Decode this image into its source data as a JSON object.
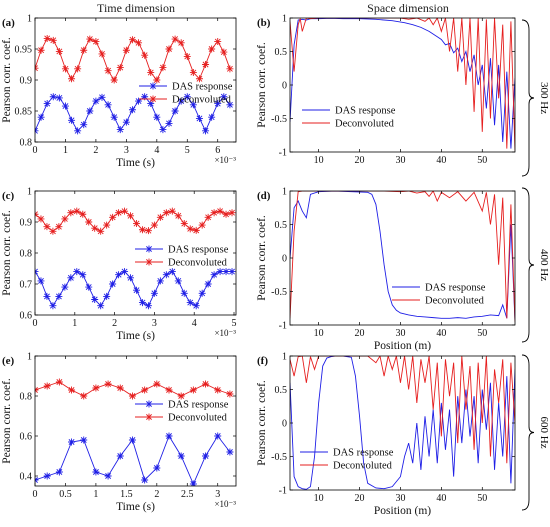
{
  "column_titles": [
    "Time dimension",
    "Space dimension"
  ],
  "frequency_labels": [
    "300 Hz",
    "400 Hz",
    "600 Hz"
  ],
  "colors": {
    "das": "#1f1fe6",
    "deconv": "#e61f1f",
    "axis": "#000000"
  },
  "chart_data": [
    {
      "id": "a",
      "panel_label": "(a)",
      "type": "line",
      "xlabel": "Time (s)",
      "ylabel": "Pearson corr. coef.",
      "x_exponent": "×10⁻³",
      "xlim": [
        0,
        6.6
      ],
      "ylim": [
        0.8,
        1
      ],
      "xticks": [
        0,
        1,
        2,
        3,
        4,
        5,
        6
      ],
      "yticks": [
        0.8,
        0.85,
        0.9,
        0.95,
        1
      ],
      "ytick_labels": [
        "0.8",
        "0.85",
        "0.9",
        "0.95",
        "1"
      ],
      "legend": {
        "loc": "center-right"
      },
      "markers": true,
      "series": [
        {
          "name": "DAS response",
          "color": "#1f1fe6",
          "x": [
            0,
            0.2,
            0.4,
            0.6,
            0.8,
            1.0,
            1.2,
            1.4,
            1.6,
            1.8,
            2.0,
            2.2,
            2.4,
            2.6,
            2.8,
            3.0,
            3.2,
            3.4,
            3.6,
            3.8,
            4.0,
            4.2,
            4.4,
            4.6,
            4.8,
            5.0,
            5.2,
            5.4,
            5.6,
            5.8,
            6.0,
            6.2,
            6.4
          ],
          "y": [
            0.818,
            0.84,
            0.862,
            0.873,
            0.871,
            0.858,
            0.835,
            0.818,
            0.828,
            0.85,
            0.866,
            0.872,
            0.86,
            0.84,
            0.82,
            0.832,
            0.852,
            0.866,
            0.873,
            0.862,
            0.84,
            0.82,
            0.83,
            0.85,
            0.866,
            0.873,
            0.86,
            0.838,
            0.818,
            0.84,
            0.862,
            0.873,
            0.86
          ]
        },
        {
          "name": "Deconvoluted",
          "color": "#e61f1f",
          "x": [
            0,
            0.2,
            0.4,
            0.6,
            0.8,
            1.0,
            1.2,
            1.4,
            1.6,
            1.8,
            2.0,
            2.2,
            2.4,
            2.6,
            2.8,
            3.0,
            3.2,
            3.4,
            3.6,
            3.8,
            4.0,
            4.2,
            4.4,
            4.6,
            4.8,
            5.0,
            5.2,
            5.4,
            5.6,
            5.8,
            6.0,
            6.2,
            6.4
          ],
          "y": [
            0.919,
            0.948,
            0.967,
            0.964,
            0.946,
            0.918,
            0.902,
            0.918,
            0.948,
            0.966,
            0.962,
            0.942,
            0.915,
            0.9,
            0.92,
            0.948,
            0.965,
            0.96,
            0.94,
            0.912,
            0.9,
            0.92,
            0.95,
            0.966,
            0.96,
            0.938,
            0.912,
            0.902,
            0.925,
            0.95,
            0.962,
            0.945,
            0.918
          ]
        }
      ]
    },
    {
      "id": "b",
      "panel_label": "(b)",
      "type": "line",
      "xlabel": "",
      "ylabel": "Pearson corr. coef.",
      "xlim": [
        3,
        58
      ],
      "ylim": [
        -1,
        1
      ],
      "xticks": [
        10,
        20,
        30,
        40,
        50
      ],
      "yticks": [
        -1,
        -0.5,
        0,
        0.5,
        1
      ],
      "ytick_labels": [
        "-1",
        "-0.5",
        "0",
        "0.5",
        "1"
      ],
      "legend": {
        "loc": "lower-left"
      },
      "markers": false,
      "series": [
        {
          "name": "DAS response",
          "color": "#1f1fe6",
          "x": [
            3,
            4,
            5,
            6,
            7,
            8,
            10,
            13,
            16,
            20,
            24,
            28,
            31,
            33,
            35,
            37,
            39,
            40,
            41,
            42,
            43,
            44,
            45,
            46,
            47,
            48,
            49,
            50,
            51,
            52,
            53,
            54,
            55,
            56,
            57,
            58
          ],
          "y": [
            -0.55,
            0.6,
            0.97,
            0.98,
            0.97,
            0.99,
            0.99,
            0.995,
            0.99,
            0.99,
            0.98,
            0.96,
            0.93,
            0.9,
            0.86,
            0.8,
            0.72,
            0.68,
            0.6,
            0.62,
            0.48,
            0.55,
            0.35,
            0.5,
            0.2,
            0.45,
            0.0,
            0.3,
            -0.35,
            0.4,
            -0.6,
            0.3,
            -0.85,
            0.2,
            -0.95,
            0.1
          ]
        },
        {
          "name": "Deconvoluted",
          "color": "#e61f1f",
          "x": [
            3,
            4,
            5,
            5.5,
            6,
            7,
            8,
            10,
            14,
            18,
            22,
            26,
            30,
            32,
            34,
            36,
            37,
            38,
            39,
            40,
            41,
            42,
            43,
            44,
            45,
            46,
            47,
            48,
            49,
            50,
            51,
            52,
            53,
            54,
            55,
            56,
            57,
            58
          ],
          "y": [
            0.95,
            0.2,
            0.9,
            0.99,
            0.8,
            1.0,
            0.99,
            1.0,
            1.0,
            1.0,
            1.0,
            1.0,
            1.0,
            0.98,
            1.0,
            0.95,
            1.0,
            0.9,
            1.0,
            0.8,
            1.0,
            0.5,
            1.0,
            0.2,
            1.0,
            0.0,
            1.0,
            -0.4,
            1.0,
            -0.7,
            0.98,
            -0.5,
            1.0,
            -0.2,
            0.9,
            -0.95,
            0.95,
            -0.98
          ]
        }
      ]
    },
    {
      "id": "c",
      "panel_label": "(c)",
      "type": "line",
      "xlabel": "Time (s)",
      "ylabel": "Pearson corr. coef.",
      "x_exponent": "×10⁻³",
      "xlim": [
        0,
        5.05
      ],
      "ylim": [
        0.6,
        1
      ],
      "xticks": [
        0,
        1,
        2,
        3,
        4,
        5
      ],
      "yticks": [
        0.6,
        0.7,
        0.8,
        0.9,
        1
      ],
      "ytick_labels": [
        "0.6",
        "0.7",
        "0.8",
        "0.9",
        "1"
      ],
      "legend": {
        "loc": "center-right"
      },
      "markers": true,
      "series": [
        {
          "name": "DAS response",
          "color": "#1f1fe6",
          "x": [
            0,
            0.15,
            0.3,
            0.45,
            0.6,
            0.75,
            0.9,
            1.05,
            1.2,
            1.35,
            1.5,
            1.65,
            1.8,
            1.95,
            2.1,
            2.25,
            2.4,
            2.55,
            2.7,
            2.85,
            3.0,
            3.15,
            3.3,
            3.45,
            3.6,
            3.75,
            3.9,
            4.05,
            4.2,
            4.35,
            4.5,
            4.65,
            4.8,
            4.95
          ],
          "y": [
            0.74,
            0.71,
            0.66,
            0.63,
            0.66,
            0.69,
            0.72,
            0.74,
            0.73,
            0.69,
            0.65,
            0.63,
            0.66,
            0.7,
            0.73,
            0.74,
            0.72,
            0.68,
            0.64,
            0.63,
            0.67,
            0.71,
            0.73,
            0.74,
            0.71,
            0.67,
            0.64,
            0.63,
            0.67,
            0.7,
            0.73,
            0.74,
            0.74,
            0.74
          ]
        },
        {
          "name": "Deconvoluted",
          "color": "#e61f1f",
          "x": [
            0,
            0.15,
            0.3,
            0.45,
            0.6,
            0.75,
            0.9,
            1.05,
            1.2,
            1.35,
            1.5,
            1.65,
            1.8,
            1.95,
            2.1,
            2.25,
            2.4,
            2.55,
            2.7,
            2.85,
            3.0,
            3.15,
            3.3,
            3.45,
            3.6,
            3.75,
            3.9,
            4.05,
            4.2,
            4.35,
            4.5,
            4.65,
            4.8,
            4.95
          ],
          "y": [
            0.925,
            0.91,
            0.885,
            0.87,
            0.885,
            0.91,
            0.93,
            0.935,
            0.925,
            0.9,
            0.88,
            0.87,
            0.89,
            0.915,
            0.93,
            0.935,
            0.92,
            0.895,
            0.875,
            0.872,
            0.89,
            0.915,
            0.93,
            0.935,
            0.92,
            0.895,
            0.878,
            0.873,
            0.89,
            0.915,
            0.93,
            0.935,
            0.925,
            0.93
          ]
        }
      ]
    },
    {
      "id": "d",
      "panel_label": "(d)",
      "type": "line",
      "xlabel": "Position (m)",
      "ylabel": "Pearson corr. coef.",
      "xlim": [
        3,
        58
      ],
      "ylim": [
        -1,
        1
      ],
      "xticks": [
        10,
        20,
        30,
        40,
        50
      ],
      "yticks": [
        -1,
        -0.5,
        0,
        0.5,
        1
      ],
      "ytick_labels": [
        "-1",
        "-0.5",
        "0",
        "0.5",
        "1"
      ],
      "legend": {
        "loc": "lower-right"
      },
      "markers": false,
      "series": [
        {
          "name": "DAS response",
          "color": "#1f1fe6",
          "x": [
            3,
            4,
            5,
            6,
            7,
            8,
            10,
            14,
            18,
            22,
            23,
            24,
            25,
            26,
            27,
            28,
            29,
            30,
            32,
            34,
            36,
            38,
            40,
            42,
            44,
            46,
            48,
            50,
            52,
            54,
            55,
            56,
            57,
            58
          ],
          "y": [
            0.0,
            0.75,
            0.85,
            0.7,
            0.6,
            0.95,
            0.99,
            1.0,
            0.99,
            0.98,
            0.95,
            0.8,
            0.4,
            -0.1,
            -0.5,
            -0.7,
            -0.78,
            -0.82,
            -0.85,
            -0.87,
            -0.88,
            -0.89,
            -0.9,
            -0.9,
            -0.89,
            -0.9,
            -0.88,
            -0.87,
            -0.85,
            -0.86,
            -0.7,
            -0.9,
            0.5,
            -0.95
          ]
        },
        {
          "name": "Deconvoluted",
          "color": "#e61f1f",
          "x": [
            3,
            4,
            5,
            6,
            8,
            10,
            14,
            18,
            22,
            26,
            30,
            32,
            34,
            36,
            37,
            38,
            39,
            40,
            42,
            44,
            46,
            48,
            50,
            51,
            52,
            53,
            54,
            55,
            56,
            57,
            58
          ],
          "y": [
            -0.9,
            0.4,
            0.99,
            1.0,
            1.0,
            1.0,
            1.0,
            1.0,
            1.0,
            1.0,
            0.99,
            1.0,
            0.97,
            0.99,
            0.92,
            1.0,
            0.85,
            0.98,
            0.9,
            0.99,
            0.85,
            0.98,
            0.7,
            0.98,
            0.5,
            0.95,
            -0.1,
            0.9,
            -0.9,
            0.8,
            -0.95
          ]
        }
      ]
    },
    {
      "id": "e",
      "panel_label": "(e)",
      "type": "line",
      "xlabel": "Time (s)",
      "ylabel": "Pearson corr. coef.",
      "x_exponent": "×10⁻³",
      "xlim": [
        0,
        3.3
      ],
      "ylim": [
        0.35,
        1
      ],
      "xticks": [
        0,
        0.5,
        1,
        1.5,
        2,
        2.5,
        3
      ],
      "yticks": [
        0.4,
        0.6,
        0.8,
        1
      ],
      "ytick_labels": [
        "0.4",
        "0.6",
        "0.8",
        "1"
      ],
      "legend": {
        "loc": "center-right"
      },
      "markers": true,
      "series": [
        {
          "name": "DAS response",
          "color": "#1f1fe6",
          "x": [
            0,
            0.2,
            0.4,
            0.6,
            0.8,
            1.0,
            1.2,
            1.4,
            1.6,
            1.8,
            2.0,
            2.2,
            2.4,
            2.6,
            2.8,
            3.0,
            3.2
          ],
          "y": [
            0.38,
            0.4,
            0.42,
            0.57,
            0.58,
            0.42,
            0.4,
            0.5,
            0.58,
            0.38,
            0.44,
            0.6,
            0.5,
            0.36,
            0.5,
            0.6,
            0.52
          ]
        },
        {
          "name": "Deconvoluted",
          "color": "#e61f1f",
          "x": [
            0,
            0.2,
            0.4,
            0.6,
            0.8,
            1.0,
            1.2,
            1.4,
            1.6,
            1.8,
            2.0,
            2.2,
            2.4,
            2.6,
            2.8,
            3.0,
            3.2
          ],
          "y": [
            0.83,
            0.85,
            0.87,
            0.83,
            0.8,
            0.84,
            0.86,
            0.84,
            0.8,
            0.83,
            0.86,
            0.83,
            0.8,
            0.83,
            0.86,
            0.83,
            0.81
          ]
        }
      ]
    },
    {
      "id": "f",
      "panel_label": "(f)",
      "type": "line",
      "xlabel": "Position (m)",
      "ylabel": "Pearson corr. coef.",
      "xlim": [
        3,
        58
      ],
      "ylim": [
        -1,
        1
      ],
      "xticks": [
        10,
        20,
        30,
        40,
        50
      ],
      "yticks": [
        -1,
        -0.5,
        0,
        0.5,
        1
      ],
      "ytick_labels": [
        "-1",
        "-0.5",
        "0",
        "0.5",
        "1"
      ],
      "legend": {
        "loc": "lower-left"
      },
      "markers": false,
      "series": [
        {
          "name": "DAS response",
          "color": "#1f1fe6",
          "x": [
            3,
            4,
            5,
            6,
            7,
            8,
            9,
            10,
            11,
            12,
            13,
            14,
            16,
            18,
            19,
            20,
            21,
            22,
            24,
            26,
            28,
            30,
            31,
            32,
            33,
            34,
            35,
            36,
            37,
            38,
            39,
            40,
            41,
            42,
            43,
            44,
            45,
            46,
            47,
            48,
            49,
            50,
            51,
            52,
            53,
            54,
            55,
            56,
            57,
            58
          ],
          "y": [
            0.6,
            -0.8,
            -0.95,
            -0.98,
            -0.99,
            -0.95,
            -0.5,
            0.3,
            0.85,
            0.97,
            0.99,
            1.0,
            1.0,
            0.98,
            0.7,
            0.1,
            -0.6,
            -0.9,
            -0.97,
            -0.98,
            -0.95,
            -0.8,
            -0.5,
            -0.3,
            -0.6,
            0.0,
            -0.7,
            0.1,
            -0.5,
            0.2,
            -0.6,
            0.3,
            -0.4,
            0.2,
            -0.8,
            0.4,
            -0.3,
            0.5,
            -0.2,
            0.4,
            -0.6,
            0.5,
            -0.1,
            0.6,
            -0.7,
            0.3,
            -0.5,
            0.7,
            -0.9,
            0.8
          ]
        },
        {
          "name": "Deconvoluted",
          "color": "#e61f1f",
          "x": [
            3,
            4,
            5,
            6,
            7,
            8,
            9,
            10,
            12,
            14,
            18,
            22,
            24,
            25,
            26,
            27,
            28,
            29,
            30,
            31,
            32,
            33,
            34,
            35,
            36,
            37,
            38,
            39,
            40,
            41,
            42,
            43,
            44,
            45,
            46,
            47,
            48,
            49,
            50,
            51,
            52,
            53,
            54,
            55,
            56,
            57,
            58
          ],
          "y": [
            0.95,
            0.7,
            0.99,
            1.0,
            0.6,
            0.99,
            0.8,
            1.0,
            1.0,
            1.0,
            1.0,
            1.0,
            0.9,
            1.0,
            0.7,
            1.0,
            0.8,
            1.0,
            0.6,
            1.0,
            0.5,
            1.0,
            0.3,
            0.95,
            0.6,
            1.0,
            0.2,
            0.9,
            -0.2,
            0.95,
            0.4,
            0.9,
            -0.3,
            1.0,
            0.2,
            0.85,
            -0.4,
            0.9,
            0.0,
            1.0,
            -0.5,
            0.8,
            0.3,
            0.95,
            -0.6,
            0.9,
            0.0
          ]
        }
      ]
    }
  ]
}
